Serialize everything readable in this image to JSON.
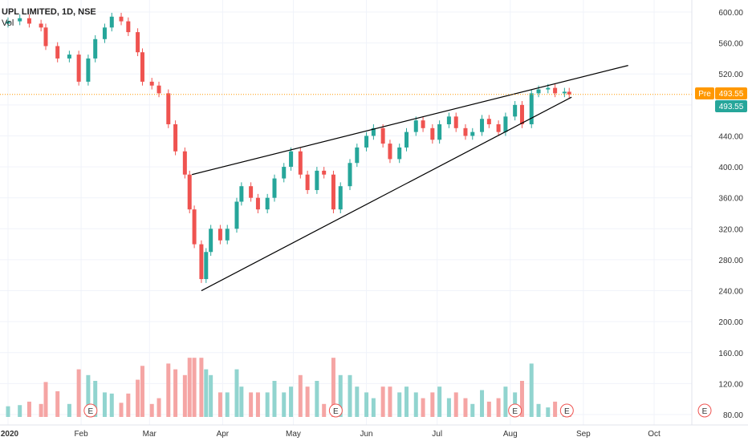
{
  "header": {
    "symbol": "UPL LIMITED, 1D, NSE",
    "indicator": "Vol"
  },
  "price_axis": {
    "ticks": [
      "600.00",
      "560.00",
      "520.00",
      "480.00",
      "440.00",
      "400.00",
      "360.00",
      "320.00",
      "280.00",
      "240.00",
      "200.00",
      "160.00",
      "120.00",
      "80.00"
    ]
  },
  "time_axis": {
    "ticks": [
      "2020",
      "Feb",
      "Mar",
      "Apr",
      "May",
      "Jun",
      "Jul",
      "Aug",
      "Sep",
      "Oct"
    ]
  },
  "badges": {
    "pre_label": "Pre",
    "pre_price": "493.55",
    "last_price": "493.55"
  },
  "colors": {
    "up": "#26a69a",
    "down": "#ef5350",
    "pre": "#ff9800",
    "trendline": "#000000",
    "event": "#ef5350"
  },
  "event_markers": [
    "E",
    "E",
    "E",
    "E",
    "E"
  ],
  "chart_data": {
    "type": "candlestick",
    "title": "UPL LIMITED, 1D, NSE",
    "price_range": [
      60,
      625
    ],
    "volume_axis_range": [
      60,
      215
    ],
    "current_price": 493.55,
    "rising_wedge": {
      "upper": [
        [
          "2020-03-19",
          390
        ],
        [
          "2020-09-20",
          531
        ]
      ],
      "lower": [
        [
          "2020-03-23",
          240
        ],
        [
          "2020-08-27",
          490
        ]
      ]
    },
    "series": [
      {
        "name": "UPL LIMITED",
        "points": [
          [
            "2020-01-01",
            585,
            588
          ],
          [
            "2020-01-06",
            588,
            592
          ],
          [
            "2020-01-10",
            592,
            585
          ],
          [
            "2020-01-15",
            585,
            580
          ],
          [
            "2020-01-17",
            580,
            556
          ],
          [
            "2020-01-22",
            556,
            540
          ],
          [
            "2020-01-27",
            540,
            545
          ],
          [
            "2020-01-31",
            545,
            510
          ],
          [
            "2020-02-04",
            510,
            540
          ],
          [
            "2020-02-07",
            540,
            565
          ],
          [
            "2020-02-11",
            565,
            580
          ],
          [
            "2020-02-14",
            580,
            594
          ],
          [
            "2020-02-18",
            594,
            588
          ],
          [
            "2020-02-21",
            588,
            574
          ],
          [
            "2020-02-25",
            574,
            548
          ],
          [
            "2020-02-27",
            548,
            510
          ],
          [
            "2020-03-02",
            510,
            505
          ],
          [
            "2020-03-05",
            505,
            495
          ],
          [
            "2020-03-09",
            495,
            455
          ],
          [
            "2020-03-12",
            455,
            420
          ],
          [
            "2020-03-16",
            420,
            390
          ],
          [
            "2020-03-18",
            390,
            345
          ],
          [
            "2020-03-20",
            345,
            300
          ],
          [
            "2020-03-23",
            300,
            255
          ],
          [
            "2020-03-25",
            255,
            290
          ],
          [
            "2020-03-27",
            290,
            320
          ],
          [
            "2020-03-31",
            320,
            305
          ],
          [
            "2020-04-03",
            305,
            320
          ],
          [
            "2020-04-07",
            320,
            355
          ],
          [
            "2020-04-09",
            355,
            375
          ],
          [
            "2020-04-13",
            375,
            360
          ],
          [
            "2020-04-16",
            360,
            345
          ],
          [
            "2020-04-20",
            345,
            360
          ],
          [
            "2020-04-23",
            360,
            385
          ],
          [
            "2020-04-27",
            385,
            400
          ],
          [
            "2020-04-30",
            400,
            420
          ],
          [
            "2020-05-04",
            420,
            390
          ],
          [
            "2020-05-07",
            390,
            370
          ],
          [
            "2020-05-11",
            370,
            395
          ],
          [
            "2020-05-14",
            395,
            390
          ],
          [
            "2020-05-18",
            390,
            345
          ],
          [
            "2020-05-21",
            345,
            375
          ],
          [
            "2020-05-25",
            375,
            405
          ],
          [
            "2020-05-28",
            405,
            425
          ],
          [
            "2020-06-01",
            425,
            440
          ],
          [
            "2020-06-04",
            440,
            450
          ],
          [
            "2020-06-08",
            450,
            430
          ],
          [
            "2020-06-11",
            430,
            410
          ],
          [
            "2020-06-15",
            410,
            425
          ],
          [
            "2020-06-18",
            425,
            445
          ],
          [
            "2020-06-22",
            445,
            460
          ],
          [
            "2020-06-25",
            460,
            450
          ],
          [
            "2020-06-29",
            450,
            435
          ],
          [
            "2020-07-02",
            435,
            455
          ],
          [
            "2020-07-06",
            455,
            465
          ],
          [
            "2020-07-09",
            465,
            450
          ],
          [
            "2020-07-13",
            450,
            440
          ],
          [
            "2020-07-16",
            440,
            445
          ],
          [
            "2020-07-20",
            445,
            462
          ],
          [
            "2020-07-23",
            462,
            455
          ],
          [
            "2020-07-27",
            455,
            445
          ],
          [
            "2020-07-30",
            445,
            465
          ],
          [
            "2020-08-03",
            465,
            480
          ],
          [
            "2020-08-06",
            480,
            455
          ],
          [
            "2020-08-10",
            455,
            495
          ],
          [
            "2020-08-13",
            495,
            500
          ],
          [
            "2020-08-17",
            500,
            502
          ],
          [
            "2020-08-20",
            502,
            495
          ],
          [
            "2020-08-24",
            495,
            497
          ],
          [
            "2020-08-26",
            497,
            493.55
          ]
        ]
      }
    ]
  }
}
